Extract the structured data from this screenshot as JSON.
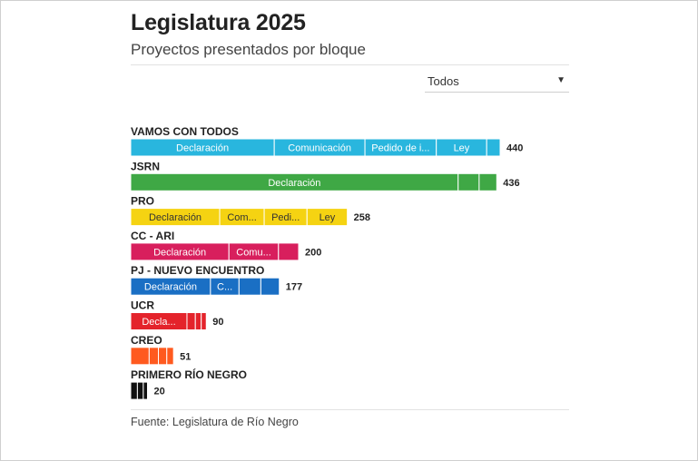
{
  "header": {
    "title": "Legislatura 2025",
    "subtitle": "Proyectos presentados por bloque"
  },
  "filter": {
    "selected": "Todos",
    "icon": "caret-down-icon"
  },
  "footer": {
    "source": "Fuente: Legislatura de Río Negro"
  },
  "chart_data": {
    "type": "bar",
    "orientation": "horizontal",
    "stacked": true,
    "grid": false,
    "legend": "none",
    "blocs": [
      {
        "name": "VAMOS CON TODOS",
        "total": 440,
        "color": "#29b6de",
        "segments": [
          {
            "label": "Declaración",
            "value": 171
          },
          {
            "label": "Comunicación",
            "value": 108
          },
          {
            "label": "Pedido de i...",
            "value": 85
          },
          {
            "label": "Ley",
            "value": 60
          },
          {
            "label": "",
            "value": 16
          }
        ]
      },
      {
        "name": "JSRN",
        "total": 436,
        "color": "#3fa845",
        "segments": [
          {
            "label": "Declaración",
            "value": 390
          },
          {
            "label": "",
            "value": 25
          },
          {
            "label": "",
            "value": 21
          }
        ]
      },
      {
        "name": "PRO",
        "total": 258,
        "color": "#f5d312",
        "segments": [
          {
            "label": "Declaración",
            "value": 106
          },
          {
            "label": "Com...",
            "value": 53
          },
          {
            "label": "Pedi...",
            "value": 51
          },
          {
            "label": "Ley",
            "value": 48
          }
        ]
      },
      {
        "name": "CC - ARI",
        "total": 200,
        "color": "#d81f5d",
        "segments": [
          {
            "label": "Declaración",
            "value": 117
          },
          {
            "label": "Comu...",
            "value": 59
          },
          {
            "label": "",
            "value": 24
          }
        ]
      },
      {
        "name": "PJ - NUEVO ENCUENTRO",
        "total": 177,
        "color": "#1a6fc4",
        "segments": [
          {
            "label": "Declaración",
            "value": 95
          },
          {
            "label": "C...",
            "value": 34
          },
          {
            "label": "",
            "value": 26
          },
          {
            "label": "",
            "value": 22
          }
        ]
      },
      {
        "name": "UCR",
        "total": 90,
        "color": "#e4232b",
        "segments": [
          {
            "label": "Decla...",
            "value": 67
          },
          {
            "label": "",
            "value": 10
          },
          {
            "label": "",
            "value": 7
          },
          {
            "label": "",
            "value": 6
          }
        ]
      },
      {
        "name": "CREO",
        "total": 51,
        "color": "#ff5a1f",
        "segments": [
          {
            "label": "",
            "value": 22
          },
          {
            "label": "",
            "value": 11
          },
          {
            "label": "",
            "value": 10
          },
          {
            "label": "",
            "value": 8
          }
        ]
      },
      {
        "name": "PRIMERO RÍO NEGRO",
        "total": 20,
        "color": "#111111",
        "segments": [
          {
            "label": "",
            "value": 8
          },
          {
            "label": "",
            "value": 7
          },
          {
            "label": "",
            "value": 5
          }
        ]
      }
    ]
  }
}
